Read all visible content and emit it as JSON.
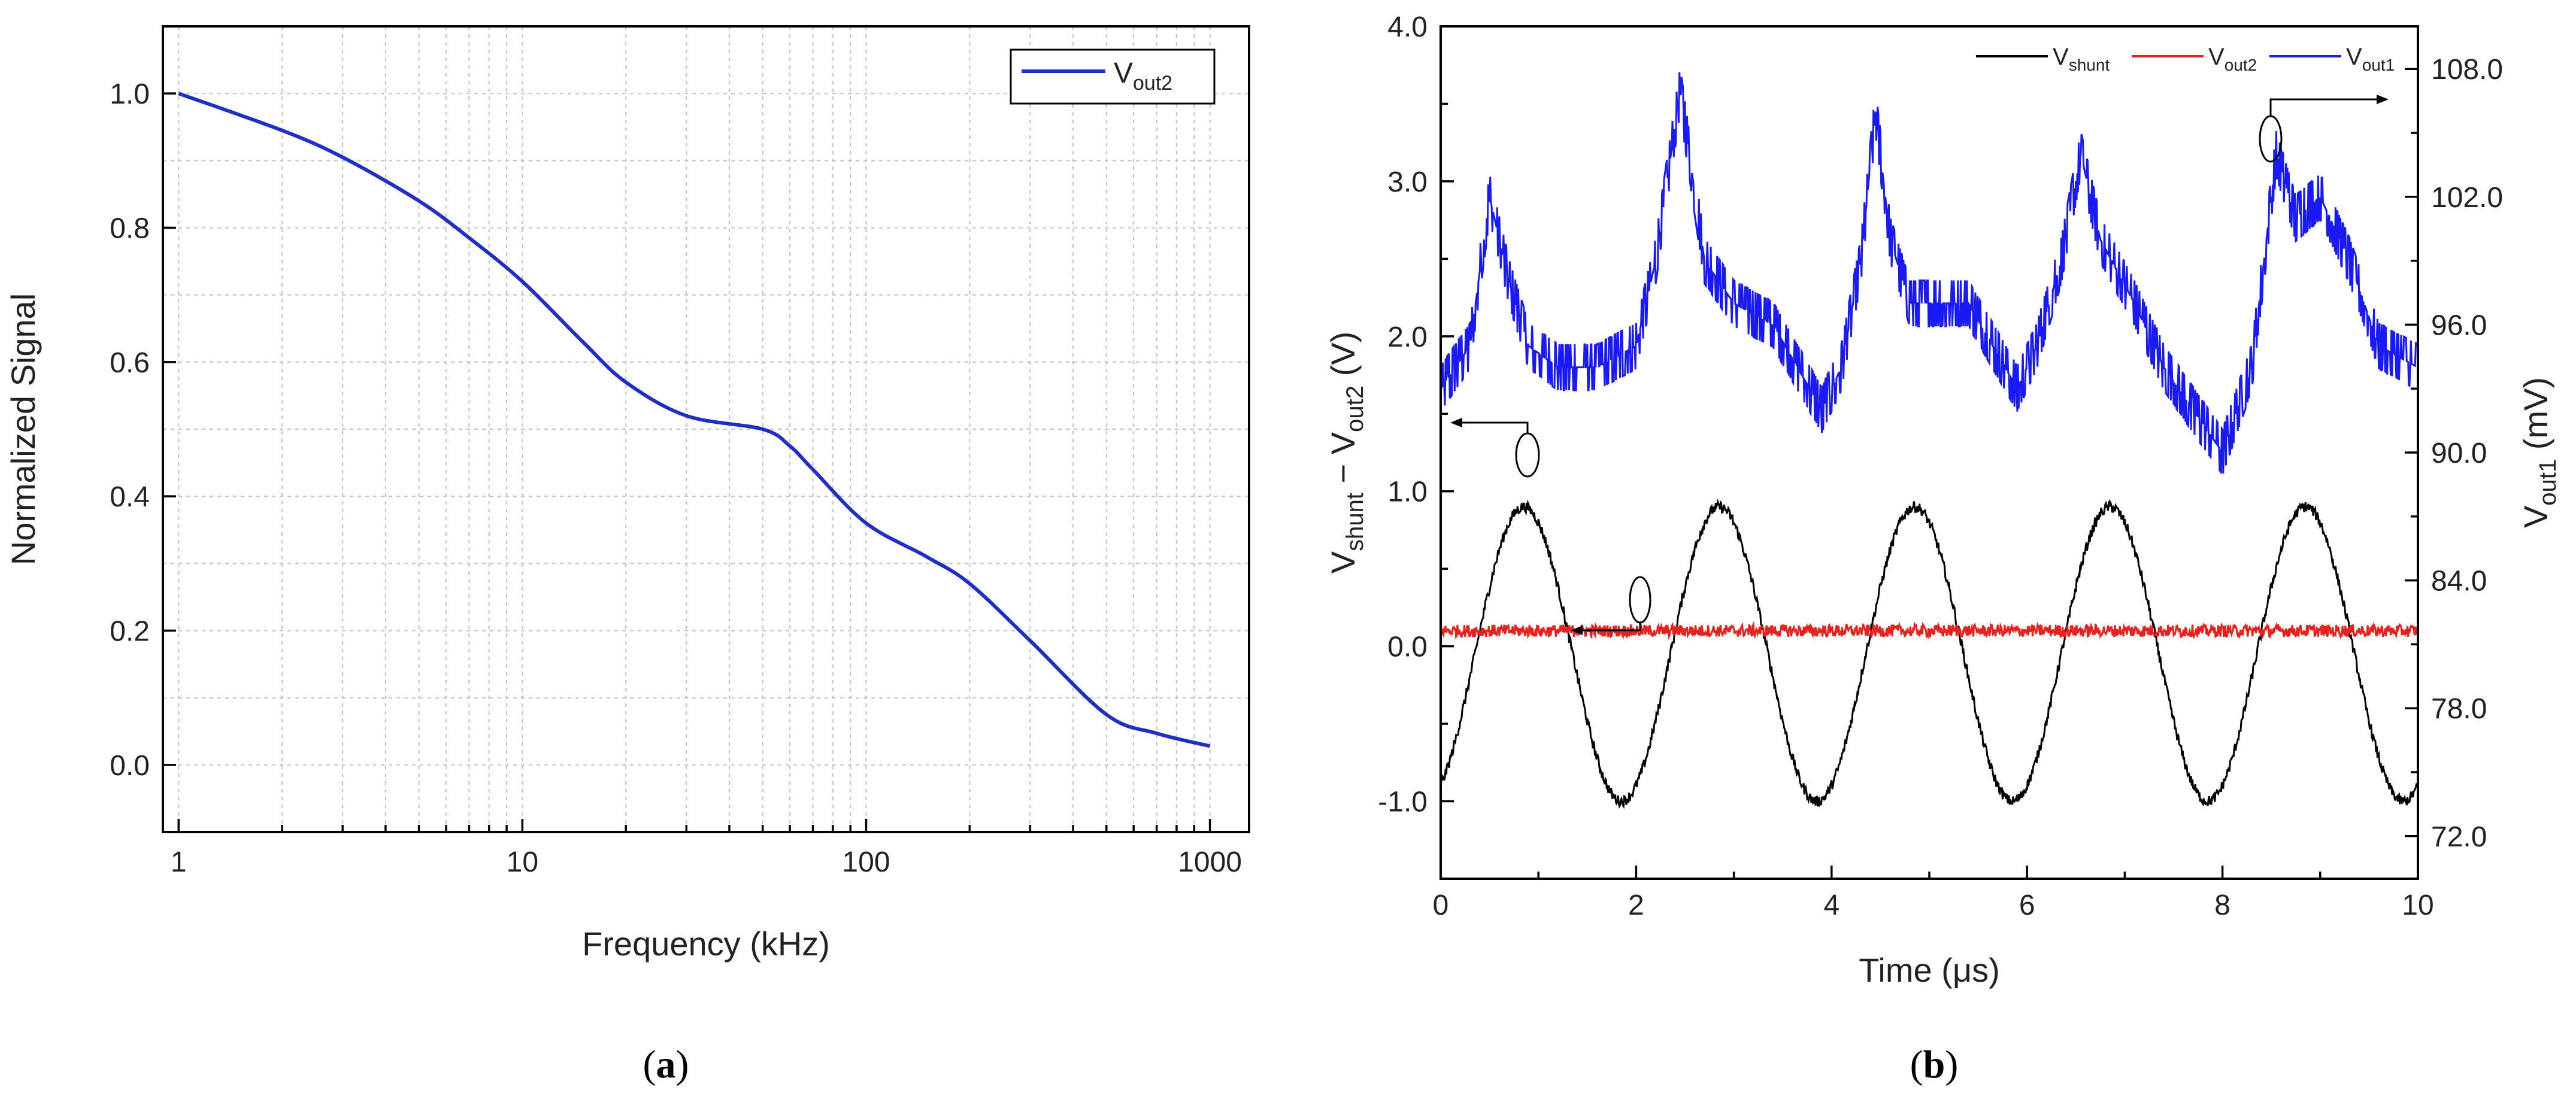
{
  "chart_data": [
    {
      "panel": "a",
      "type": "line",
      "xscale": "log",
      "xlabel": "Frequency (kHz)",
      "ylabel": "Normalized Signal",
      "xlim": [
        0.9,
        1300
      ],
      "ylim": [
        -0.1,
        1.1
      ],
      "grid": true,
      "x_ticks": [
        "1",
        "10",
        "100",
        "1000"
      ],
      "y_ticks": [
        "0.0",
        "0.2",
        "0.4",
        "0.6",
        "0.8",
        "1.0"
      ],
      "legend_position": "top-right",
      "series": [
        {
          "name": "V",
          "name_sub": "out2",
          "color": "#1f2ec4",
          "x": [
            1,
            2,
            3,
            5,
            7,
            10,
            15,
            20,
            30,
            50,
            60,
            70,
            100,
            150,
            200,
            300,
            500,
            700,
            1000
          ],
          "y": [
            1.0,
            0.945,
            0.905,
            0.84,
            0.785,
            0.72,
            0.63,
            0.57,
            0.52,
            0.5,
            0.475,
            0.44,
            0.36,
            0.31,
            0.27,
            0.185,
            0.075,
            0.047,
            0.028
          ]
        }
      ]
    },
    {
      "panel": "b",
      "type": "line",
      "xlabel": "Time (μs)",
      "ylabel_left": "V_shunt − V_out2 (V)",
      "ylabel_right": "V_out1 (mV)",
      "xlim": [
        0,
        10
      ],
      "ylim_left": [
        -1.5,
        4.0
      ],
      "ylim_right": [
        70.0,
        110.0
      ],
      "x_ticks": [
        "0",
        "2",
        "4",
        "6",
        "8",
        "10"
      ],
      "y_ticks_left": [
        "-1.0",
        "0.0",
        "1.0",
        "2.0",
        "3.0",
        "4.0"
      ],
      "y_ticks_right": [
        "72.0",
        "78.0",
        "84.0",
        "90.0",
        "96.0",
        "102.0",
        "108.0"
      ],
      "legend_position": "top-right",
      "series": [
        {
          "name": "V",
          "name_sub": "shunt",
          "axis": "left",
          "color": "#000000",
          "description": "sinusoid, amplitude ~0.95 V, period 2 μs",
          "amplitude": 0.95,
          "period": 2.0,
          "peak_times": [
            0.85,
            2.85,
            4.85,
            6.85,
            8.85
          ],
          "noise": 0.035
        },
        {
          "name": "V",
          "name_sub": "out2",
          "axis": "left",
          "color": "#e8211d",
          "description": "flat noisy trace near 0.1 V",
          "level": 0.1,
          "noise": 0.04
        },
        {
          "name": "V",
          "name_sub": "out1",
          "axis": "right",
          "color": "#1a1af5",
          "description": "periodic peaks about 102–107 mV over ~93 mV baseline",
          "x": [
            0,
            0.3,
            0.5,
            0.7,
            0.9,
            1.2,
            1.6,
            2.0,
            2.2,
            2.45,
            2.7,
            3.0,
            3.4,
            3.9,
            4.1,
            4.3,
            4.45,
            4.6,
            4.8,
            5.4,
            5.9,
            6.1,
            6.35,
            6.55,
            6.75,
            7.1,
            7.4,
            7.7,
            8.0,
            8.3,
            8.55,
            8.75,
            9.0,
            9.3,
            9.6,
            10.0
          ],
          "y": [
            93,
            95,
            102,
            98,
            95,
            94,
            94,
            95,
            99,
            107,
            99,
            97,
            96,
            92,
            94,
            99,
            106,
            100,
            97,
            97,
            93,
            95,
            99,
            104,
            100,
            97,
            94,
            92,
            90,
            94,
            104,
            101,
            102,
            99,
            95,
            94
          ],
          "noise": 1.2
        }
      ],
      "annotations": [
        {
          "text": "",
          "description": "ellipse with arrow pointing left to V_shunt axis near t=0.85"
        },
        {
          "text": "",
          "description": "ellipse with arrow pointing left to left axis near t=2.05 on V_out2 trace"
        },
        {
          "text": "",
          "description": "ellipse with arrow pointing right to V_out1 axis near t=8.55"
        }
      ]
    }
  ],
  "labels": {
    "panel_a": "(a)",
    "panel_b": "(b)",
    "a_xlabel": "Frequency (kHz)",
    "a_ylabel": "Normalized Signal",
    "a_legend_main": "V",
    "a_legend_sub": "out2",
    "b_xlabel_main": "Time (",
    "b_xlabel_mu": "μs",
    "b_xlabel_end": ")",
    "b_ylabel_left_v1": "V",
    "b_ylabel_left_s1": "shunt",
    "b_ylabel_left_minus": " − V",
    "b_ylabel_left_s2": "out2",
    "b_ylabel_left_unit": " (V)",
    "b_ylabel_right_v": "V",
    "b_ylabel_right_s": "out1",
    "b_ylabel_right_unit": " (mV)",
    "legend_b": [
      {
        "main": "V",
        "sub": "shunt"
      },
      {
        "main": "V",
        "sub": "out2"
      },
      {
        "main": "V",
        "sub": "out1"
      }
    ]
  },
  "colors": {
    "blue_a": "#1f2ec4",
    "black": "#000000",
    "red": "#e8211d",
    "blue_b": "#1a1af5"
  }
}
